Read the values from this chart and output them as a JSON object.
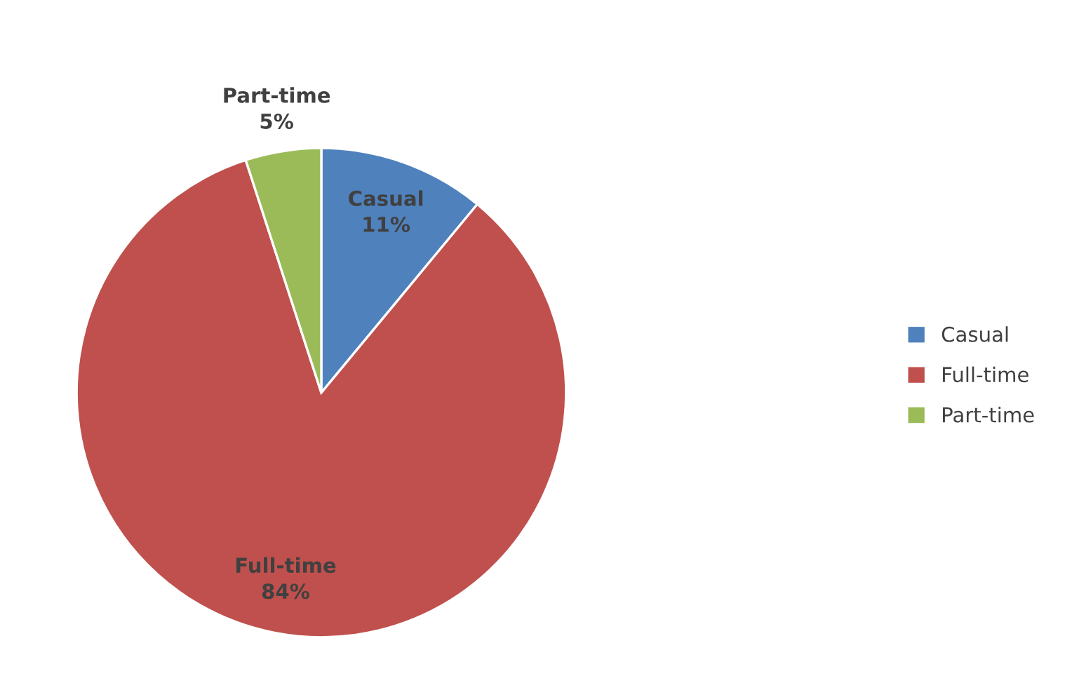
{
  "chart_data": {
    "type": "pie",
    "categories": [
      "Casual",
      "Full-time",
      "Part-time"
    ],
    "values": [
      11,
      84,
      5
    ],
    "colors": [
      "#4f81bd",
      "#c0504d",
      "#9bbb59"
    ],
    "value_labels": [
      "11%",
      "84%",
      "5%"
    ],
    "legend": "right"
  }
}
